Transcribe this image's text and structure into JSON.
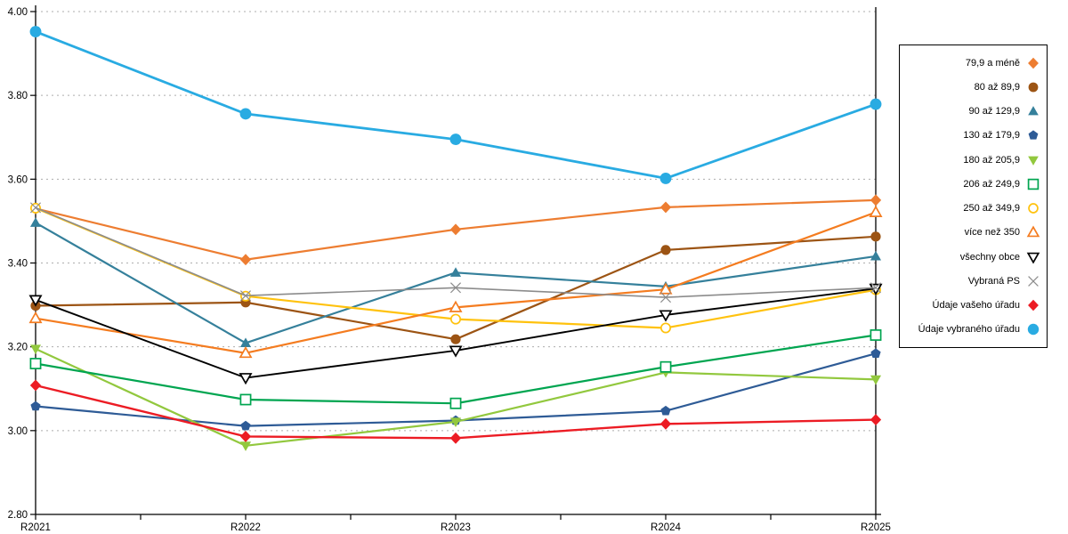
{
  "chart_data": {
    "type": "line",
    "title": "",
    "xlabel": "",
    "ylabel": "",
    "x_categories": [
      "R2021",
      "R2022",
      "R2023",
      "R2024",
      "R2025"
    ],
    "y_tick_labels": [
      "4.00",
      "3.80",
      "3.60",
      "3.40",
      "3.20",
      "3.00",
      "2.80"
    ],
    "y_tick_values": [
      4.0,
      3.8,
      3.6,
      3.4,
      3.2,
      3.0,
      2.8
    ],
    "ylim": [
      2.8,
      4.0
    ],
    "grid": "horizontal-dashed",
    "grid_color": "#ADADAD",
    "axis_color": "#000000",
    "legend_position": "right",
    "series": [
      {
        "name": "79,9 a méně",
        "color": "#ED7D31",
        "marker": "diamond-filled",
        "line_width": 2.2,
        "values": [
          3.53,
          3.408,
          3.48,
          3.533,
          3.55
        ]
      },
      {
        "name": "80 až 89,9",
        "color": "#9C5414",
        "marker": "circle-filled",
        "line_width": 2.2,
        "values": [
          3.298,
          3.306,
          3.218,
          3.431,
          3.463
        ]
      },
      {
        "name": "90 až 129,9",
        "color": "#35809B",
        "marker": "triangle-up-filled",
        "line_width": 2.2,
        "values": [
          3.496,
          3.209,
          3.377,
          3.344,
          3.416
        ]
      },
      {
        "name": "130 až 179,9",
        "color": "#2E5B96",
        "marker": "pentagon-filled",
        "line_width": 2.2,
        "values": [
          3.058,
          3.011,
          3.024,
          3.047,
          3.184
        ]
      },
      {
        "name": "180 až 205,9",
        "color": "#92C83E",
        "marker": "triangle-down-filled",
        "line_width": 2.2,
        "values": [
          3.195,
          2.964,
          3.021,
          3.139,
          3.122
        ]
      },
      {
        "name": "206 až 249,9",
        "color": "#00A550",
        "marker": "square-open",
        "line_width": 2.2,
        "values": [
          3.16,
          3.074,
          3.065,
          3.152,
          3.228
        ]
      },
      {
        "name": "250 až 349,9",
        "color": "#FFC20E",
        "marker": "circle-open",
        "line_width": 2.2,
        "values": [
          3.531,
          3.321,
          3.266,
          3.245,
          3.336
        ]
      },
      {
        "name": "více než 350",
        "color": "#F47C20",
        "marker": "triangle-up-open",
        "line_width": 2.2,
        "values": [
          3.268,
          3.185,
          3.294,
          3.337,
          3.521
        ]
      },
      {
        "name": "všechny obce",
        "color": "#000000",
        "marker": "triangle-down-open",
        "line_width": 1.9,
        "values": [
          3.312,
          3.126,
          3.191,
          3.276,
          3.339
        ]
      },
      {
        "name": "Vybraná PS",
        "color": "#8C8C8C",
        "marker": "x",
        "line_width": 1.6,
        "values": [
          3.532,
          3.322,
          3.341,
          3.318,
          3.341
        ]
      },
      {
        "name": "Údaje vašeho úřadu",
        "color": "#EC1C24",
        "marker": "diamond-filled",
        "line_width": 2.4,
        "values": [
          3.108,
          2.986,
          2.982,
          3.016,
          3.026
        ]
      },
      {
        "name": "Údaje vybraného úřadu",
        "color": "#29ABE2",
        "marker": "circle-filled-large",
        "line_width": 2.8,
        "values": [
          3.952,
          3.756,
          3.695,
          3.602,
          3.779
        ]
      }
    ]
  }
}
